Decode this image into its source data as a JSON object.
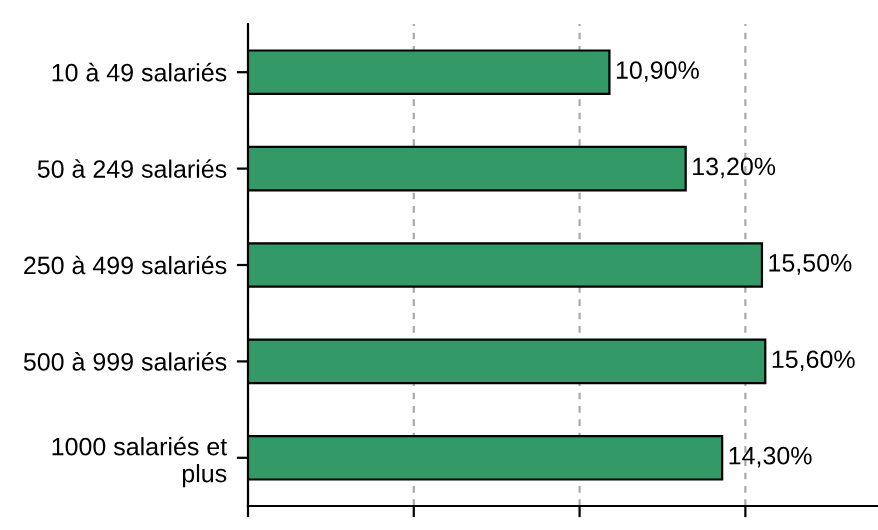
{
  "chart_data": {
    "type": "bar",
    "orientation": "horizontal",
    "categories": [
      "10 à 49 salariés",
      "50 à 249 salariés",
      "250 à 499 salariés",
      "500 à 999 salariés",
      "1000 salariés et\nplus"
    ],
    "values": [
      10.9,
      13.2,
      15.5,
      15.6,
      14.3
    ],
    "value_labels": [
      "10,90%",
      "13,20%",
      "15,50%",
      "15,60%",
      "14,30%"
    ],
    "color": "#339966",
    "xlim": [
      0,
      19
    ],
    "xticks": [
      {
        "value": 0,
        "label": null
      },
      {
        "value": 5,
        "label": null
      },
      {
        "value": 10,
        "label": null
      },
      {
        "value": 15,
        "label": null
      }
    ],
    "tick_labels": "y",
    "grid": "x",
    "legend": false
  }
}
